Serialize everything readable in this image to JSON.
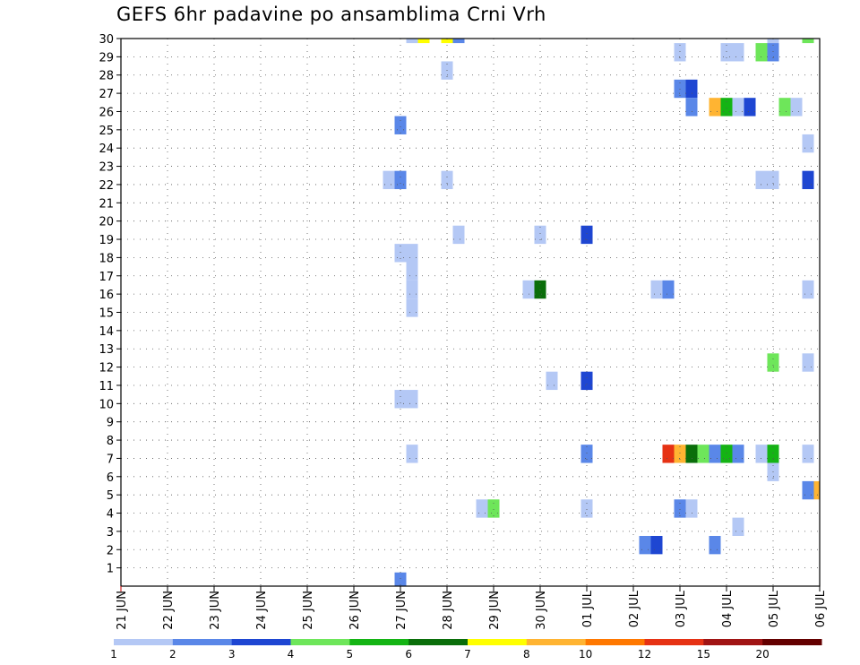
{
  "chart_data": {
    "type": "heatmap",
    "title": "GEFS 6hr padavine po ansamblima Crni Vrh",
    "xlabel": "",
    "ylabel": "",
    "x_tick_labels": [
      "21 JUN",
      "22 JUN",
      "23 JUN",
      "24 JUN",
      "25 JUN",
      "26 JUN",
      "27 JUN",
      "28 JUN",
      "29 JUN",
      "30 JUN",
      "01 JUL",
      "02 JUL",
      "03 JUL",
      "04 JUL",
      "05 JUL",
      "06 JUL"
    ],
    "y_tick_labels": [
      "1",
      "2",
      "3",
      "4",
      "5",
      "6",
      "7",
      "8",
      "9",
      "10",
      "11",
      "12",
      "13",
      "14",
      "15",
      "16",
      "17",
      "18",
      "19",
      "20",
      "21",
      "22",
      "23",
      "24",
      "25",
      "26",
      "27",
      "28",
      "29",
      "30"
    ],
    "time_step_hours": 6,
    "x_range_steps": [
      0,
      60
    ],
    "y_range": [
      0,
      30
    ],
    "grid": "dotted",
    "colorbar": {
      "position": "bottom",
      "labels": [
        "1",
        "2",
        "3",
        "4",
        "5",
        "6",
        "7",
        "8",
        "10",
        "12",
        "15",
        "20"
      ],
      "colors": [
        "#b4c8f5",
        "#5a87e8",
        "#1e46d2",
        "#6ee65a",
        "#14b414",
        "#0a6e0a",
        "#ffff00",
        "#ffb432",
        "#ff7800",
        "#e63214",
        "#a01414",
        "#640000"
      ]
    },
    "cells": [
      {
        "step": 25,
        "member": 30,
        "level": 1
      },
      {
        "step": 26,
        "member": 30,
        "level": 7
      },
      {
        "step": 28,
        "member": 30,
        "level": 7
      },
      {
        "step": 29,
        "member": 30,
        "level": 2
      },
      {
        "step": 56,
        "member": 30,
        "level": 1
      },
      {
        "step": 59,
        "member": 30,
        "level": 4
      },
      {
        "step": 48,
        "member": 29,
        "level": 1
      },
      {
        "step": 52,
        "member": 29,
        "level": 1
      },
      {
        "step": 53,
        "member": 29,
        "level": 1
      },
      {
        "step": 55,
        "member": 29,
        "level": 4
      },
      {
        "step": 56,
        "member": 29,
        "level": 2
      },
      {
        "step": 28,
        "member": 28,
        "level": 1
      },
      {
        "step": 48,
        "member": 27,
        "level": 2
      },
      {
        "step": 49,
        "member": 27,
        "level": 3
      },
      {
        "step": 49,
        "member": 26,
        "level": 2
      },
      {
        "step": 51,
        "member": 26,
        "level": 8
      },
      {
        "step": 52,
        "member": 26,
        "level": 5
      },
      {
        "step": 53,
        "member": 26,
        "level": 1
      },
      {
        "step": 54,
        "member": 26,
        "level": 3
      },
      {
        "step": 57,
        "member": 26,
        "level": 4
      },
      {
        "step": 58,
        "member": 26,
        "level": 1
      },
      {
        "step": 24,
        "member": 25,
        "level": 2
      },
      {
        "step": 59,
        "member": 24,
        "level": 1
      },
      {
        "step": 23,
        "member": 22,
        "level": 1
      },
      {
        "step": 24,
        "member": 22,
        "level": 2
      },
      {
        "step": 28,
        "member": 22,
        "level": 1
      },
      {
        "step": 55,
        "member": 22,
        "level": 1
      },
      {
        "step": 56,
        "member": 22,
        "level": 1
      },
      {
        "step": 59,
        "member": 22,
        "level": 3
      },
      {
        "step": 29,
        "member": 19,
        "level": 1
      },
      {
        "step": 36,
        "member": 19,
        "level": 1
      },
      {
        "step": 40,
        "member": 19,
        "level": 3
      },
      {
        "step": 24,
        "member": 18,
        "level": 1
      },
      {
        "step": 25,
        "member": 18,
        "level": 1
      },
      {
        "step": 25,
        "member": 17,
        "level": 1
      },
      {
        "step": 25,
        "member": 16,
        "level": 1
      },
      {
        "step": 35,
        "member": 16,
        "level": 1
      },
      {
        "step": 36,
        "member": 16,
        "level": 6
      },
      {
        "step": 46,
        "member": 16,
        "level": 1
      },
      {
        "step": 47,
        "member": 16,
        "level": 2
      },
      {
        "step": 59,
        "member": 16,
        "level": 1
      },
      {
        "step": 25,
        "member": 15,
        "level": 1
      },
      {
        "step": 56,
        "member": 12,
        "level": 4
      },
      {
        "step": 59,
        "member": 12,
        "level": 1
      },
      {
        "step": 37,
        "member": 11,
        "level": 1
      },
      {
        "step": 40,
        "member": 11,
        "level": 3
      },
      {
        "step": 24,
        "member": 10,
        "level": 1
      },
      {
        "step": 25,
        "member": 10,
        "level": 1
      },
      {
        "step": 25,
        "member": 7,
        "level": 1
      },
      {
        "step": 40,
        "member": 7,
        "level": 2
      },
      {
        "step": 47,
        "member": 7,
        "level": 10
      },
      {
        "step": 48,
        "member": 7,
        "level": 8
      },
      {
        "step": 49,
        "member": 7,
        "level": 6
      },
      {
        "step": 50,
        "member": 7,
        "level": 4
      },
      {
        "step": 51,
        "member": 7,
        "level": 2
      },
      {
        "step": 52,
        "member": 7,
        "level": 5
      },
      {
        "step": 53,
        "member": 7,
        "level": 2
      },
      {
        "step": 55,
        "member": 7,
        "level": 1
      },
      {
        "step": 56,
        "member": 7,
        "level": 5
      },
      {
        "step": 59,
        "member": 7,
        "level": 1
      },
      {
        "step": 56,
        "member": 6,
        "level": 1
      },
      {
        "step": 59,
        "member": 5,
        "level": 2
      },
      {
        "step": 60,
        "member": 5,
        "level": 8
      },
      {
        "step": 31,
        "member": 4,
        "level": 1
      },
      {
        "step": 32,
        "member": 4,
        "level": 4
      },
      {
        "step": 40,
        "member": 4,
        "level": 1
      },
      {
        "step": 48,
        "member": 4,
        "level": 2
      },
      {
        "step": 49,
        "member": 4,
        "level": 1
      },
      {
        "step": 53,
        "member": 3,
        "level": 1
      },
      {
        "step": 45,
        "member": 2,
        "level": 2
      },
      {
        "step": 46,
        "member": 2,
        "level": 3
      },
      {
        "step": 51,
        "member": 2,
        "level": 2
      },
      {
        "step": 24,
        "member": 0,
        "level": 2
      }
    ]
  }
}
